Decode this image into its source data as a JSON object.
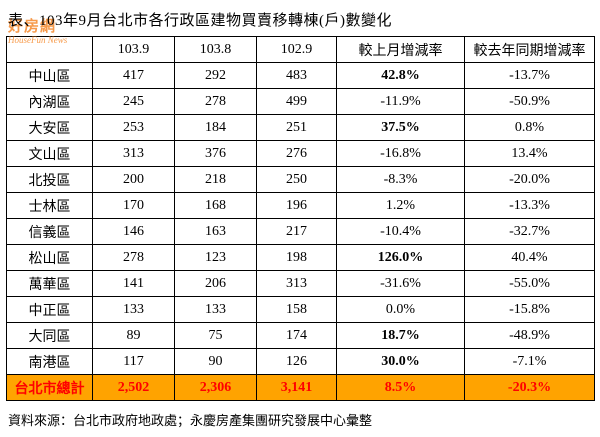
{
  "title": "表、103年9月台北市各行政區建物買賣移轉棟(戶)數變化",
  "watermark": {
    "logo_text": "好房網",
    "name": "HouseFun News"
  },
  "footer": "資料來源：台北市政府地政處；永慶房產集團研究發展中心彙整",
  "colors": {
    "total_row_background": "#ffa300",
    "total_row_text": "#ff0000",
    "watermark_orange": "#f5821f",
    "border": "#000000"
  },
  "chart_data": {
    "type": "table",
    "title": "103年9月台北市各行政區建物買賣移轉棟(戶)數變化",
    "columns": [
      "",
      "103.9",
      "103.8",
      "102.9",
      "較上月增減率",
      "較去年同期增減率"
    ],
    "rows": [
      [
        "中山區",
        "417",
        "292",
        "483",
        "42.8%",
        "-13.7%"
      ],
      [
        "內湖區",
        "245",
        "278",
        "499",
        "-11.9%",
        "-50.9%"
      ],
      [
        "大安區",
        "253",
        "184",
        "251",
        "37.5%",
        "0.8%"
      ],
      [
        "文山區",
        "313",
        "376",
        "276",
        "-16.8%",
        "13.4%"
      ],
      [
        "北投區",
        "200",
        "218",
        "250",
        "-8.3%",
        "-20.0%"
      ],
      [
        "士林區",
        "170",
        "168",
        "196",
        "1.2%",
        "-13.3%"
      ],
      [
        "信義區",
        "146",
        "163",
        "217",
        "-10.4%",
        "-32.7%"
      ],
      [
        "松山區",
        "278",
        "123",
        "198",
        "126.0%",
        "40.4%"
      ],
      [
        "萬華區",
        "141",
        "206",
        "313",
        "-31.6%",
        "-55.0%"
      ],
      [
        "中正區",
        "133",
        "133",
        "158",
        "0.0%",
        "-15.8%"
      ],
      [
        "大同區",
        "89",
        "75",
        "174",
        "18.7%",
        "-48.9%"
      ],
      [
        "南港區",
        "117",
        "90",
        "126",
        "30.0%",
        "-7.1%"
      ]
    ],
    "total": [
      "台北市總計",
      "2,502",
      "2,306",
      "3,141",
      "8.5%",
      "-20.3%"
    ]
  }
}
